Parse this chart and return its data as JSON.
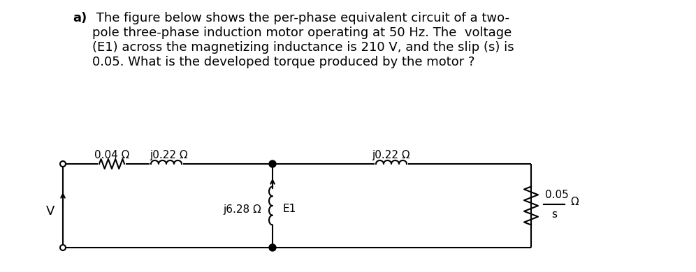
{
  "title_bold": "a)",
  "title_text": " The figure below shows the per-phase equivalent circuit of a two-\npole three-phase induction motor operating at 50 Hz. The  voltage\n(E1) across the magnetizing inductance is 210 V, and the slip (s) is\n0.05. What is the developed torque produced by the motor ?",
  "bg_color": "#ffffff",
  "text_color": "#000000",
  "circuit": {
    "R1_label": "0.04 Ω",
    "X1_label": "j0.22 Ω",
    "X2_label": "j0.22 Ω",
    "Xm_label": "j6.28 Ω",
    "E1_label": "E1",
    "R2_label": "0.05",
    "R2_denom": "s",
    "V_label": "V"
  }
}
